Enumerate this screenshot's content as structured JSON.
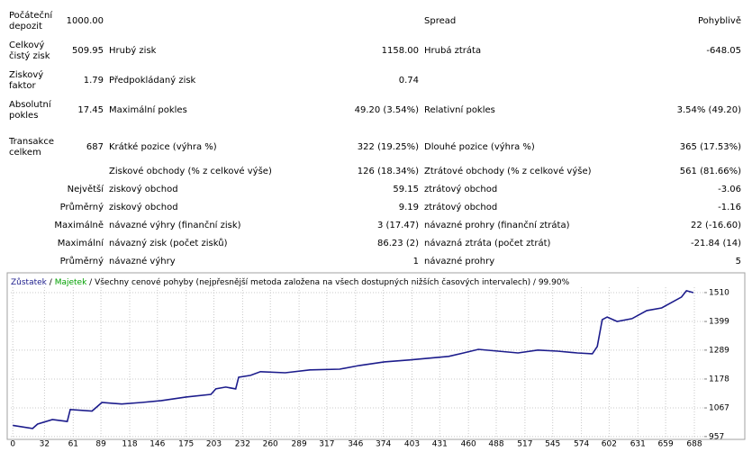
{
  "report": {
    "rows": [
      [
        "Počáteční depozit",
        "1000.00",
        null,
        null,
        "Spread",
        "Pohyblivě"
      ],
      [
        "Celkový čistý zisk",
        "509.95",
        "Hrubý zisk",
        "1158.00",
        "Hrubá ztráta",
        "-648.05"
      ],
      [
        "Ziskový faktor",
        "1.79",
        "Předpokládaný zisk",
        "0.74",
        null,
        null
      ],
      [
        "Absolutní pokles",
        "17.45",
        "Maximální pokles",
        "49.20 (3.54%)",
        "Relativní pokles",
        "3.54% (49.20)"
      ],
      [
        "Transakce celkem",
        "687",
        "Krátké pozice (výhra %)",
        "322 (19.25%)",
        "Dlouhé pozice (výhra %)",
        "365 (17.53%)"
      ],
      [
        null,
        null,
        "Ziskové obchody (% z celkové výše)",
        "126 (18.34%)",
        "Ztrátové obchody (% z celkové výše)",
        "561 (81.66%)"
      ],
      [
        null,
        "Největší",
        "ziskový obchod",
        "59.15",
        "ztrátový obchod",
        "-3.06"
      ],
      [
        null,
        "Průměrný",
        "ziskový obchod",
        "9.19",
        "ztrátový obchod",
        "-1.16"
      ],
      [
        null,
        "Maximálně",
        "návazné výhry (finanční zisk)",
        "3 (17.47)",
        "návazné prohry (finanční ztráta)",
        "22 (-16.60)"
      ],
      [
        null,
        "Maximální",
        "návazný zisk (počet zisků)",
        "86.23 (2)",
        "návazná ztráta (počet ztrát)",
        "-21.84 (14)"
      ],
      [
        null,
        "Průměrný",
        "návazné výhry",
        "1",
        "návazné prohry",
        "5"
      ]
    ]
  },
  "chart_data": {
    "type": "line",
    "separator": "/",
    "equity_name": "Majetek",
    "equity_color": "#00a000",
    "note": "/ Všechny cenové pohyby (nejpřesnější metoda založena na všech dostupných nižších časových intervalech) / 99.90%",
    "x": [
      0,
      20,
      25,
      40,
      55,
      58,
      80,
      90,
      110,
      130,
      150,
      175,
      200,
      205,
      215,
      225,
      228,
      240,
      250,
      275,
      300,
      330,
      350,
      375,
      400,
      420,
      440,
      455,
      470,
      490,
      510,
      530,
      550,
      570,
      585,
      590,
      595,
      600,
      610,
      625,
      640,
      655,
      665,
      675,
      680,
      687
    ],
    "series": [
      {
        "name": "Zůstatek",
        "color": "#1c1c8c",
        "values": [
          1000,
          988,
          1005,
          1022,
          1015,
          1061,
          1055,
          1088,
          1082,
          1088,
          1095,
          1109,
          1119,
          1140,
          1147,
          1140,
          1185,
          1192,
          1206,
          1202,
          1213,
          1216,
          1230,
          1244,
          1251,
          1258,
          1265,
          1278,
          1292,
          1285,
          1278,
          1289,
          1285,
          1278,
          1275,
          1303,
          1406,
          1416,
          1399,
          1410,
          1441,
          1451,
          1472,
          1493,
          1517,
          1510
        ]
      }
    ],
    "xlim": [
      -2,
      698
    ],
    "xticks": [
      0,
      32,
      61,
      89,
      118,
      146,
      175,
      203,
      232,
      260,
      289,
      317,
      346,
      374,
      403,
      431,
      460,
      488,
      517,
      545,
      574,
      602,
      631,
      659,
      688
    ],
    "ylim": [
      953,
      1579
    ],
    "yticks": [
      957,
      1067,
      1178,
      1289,
      1399,
      1510
    ],
    "grid": true
  }
}
